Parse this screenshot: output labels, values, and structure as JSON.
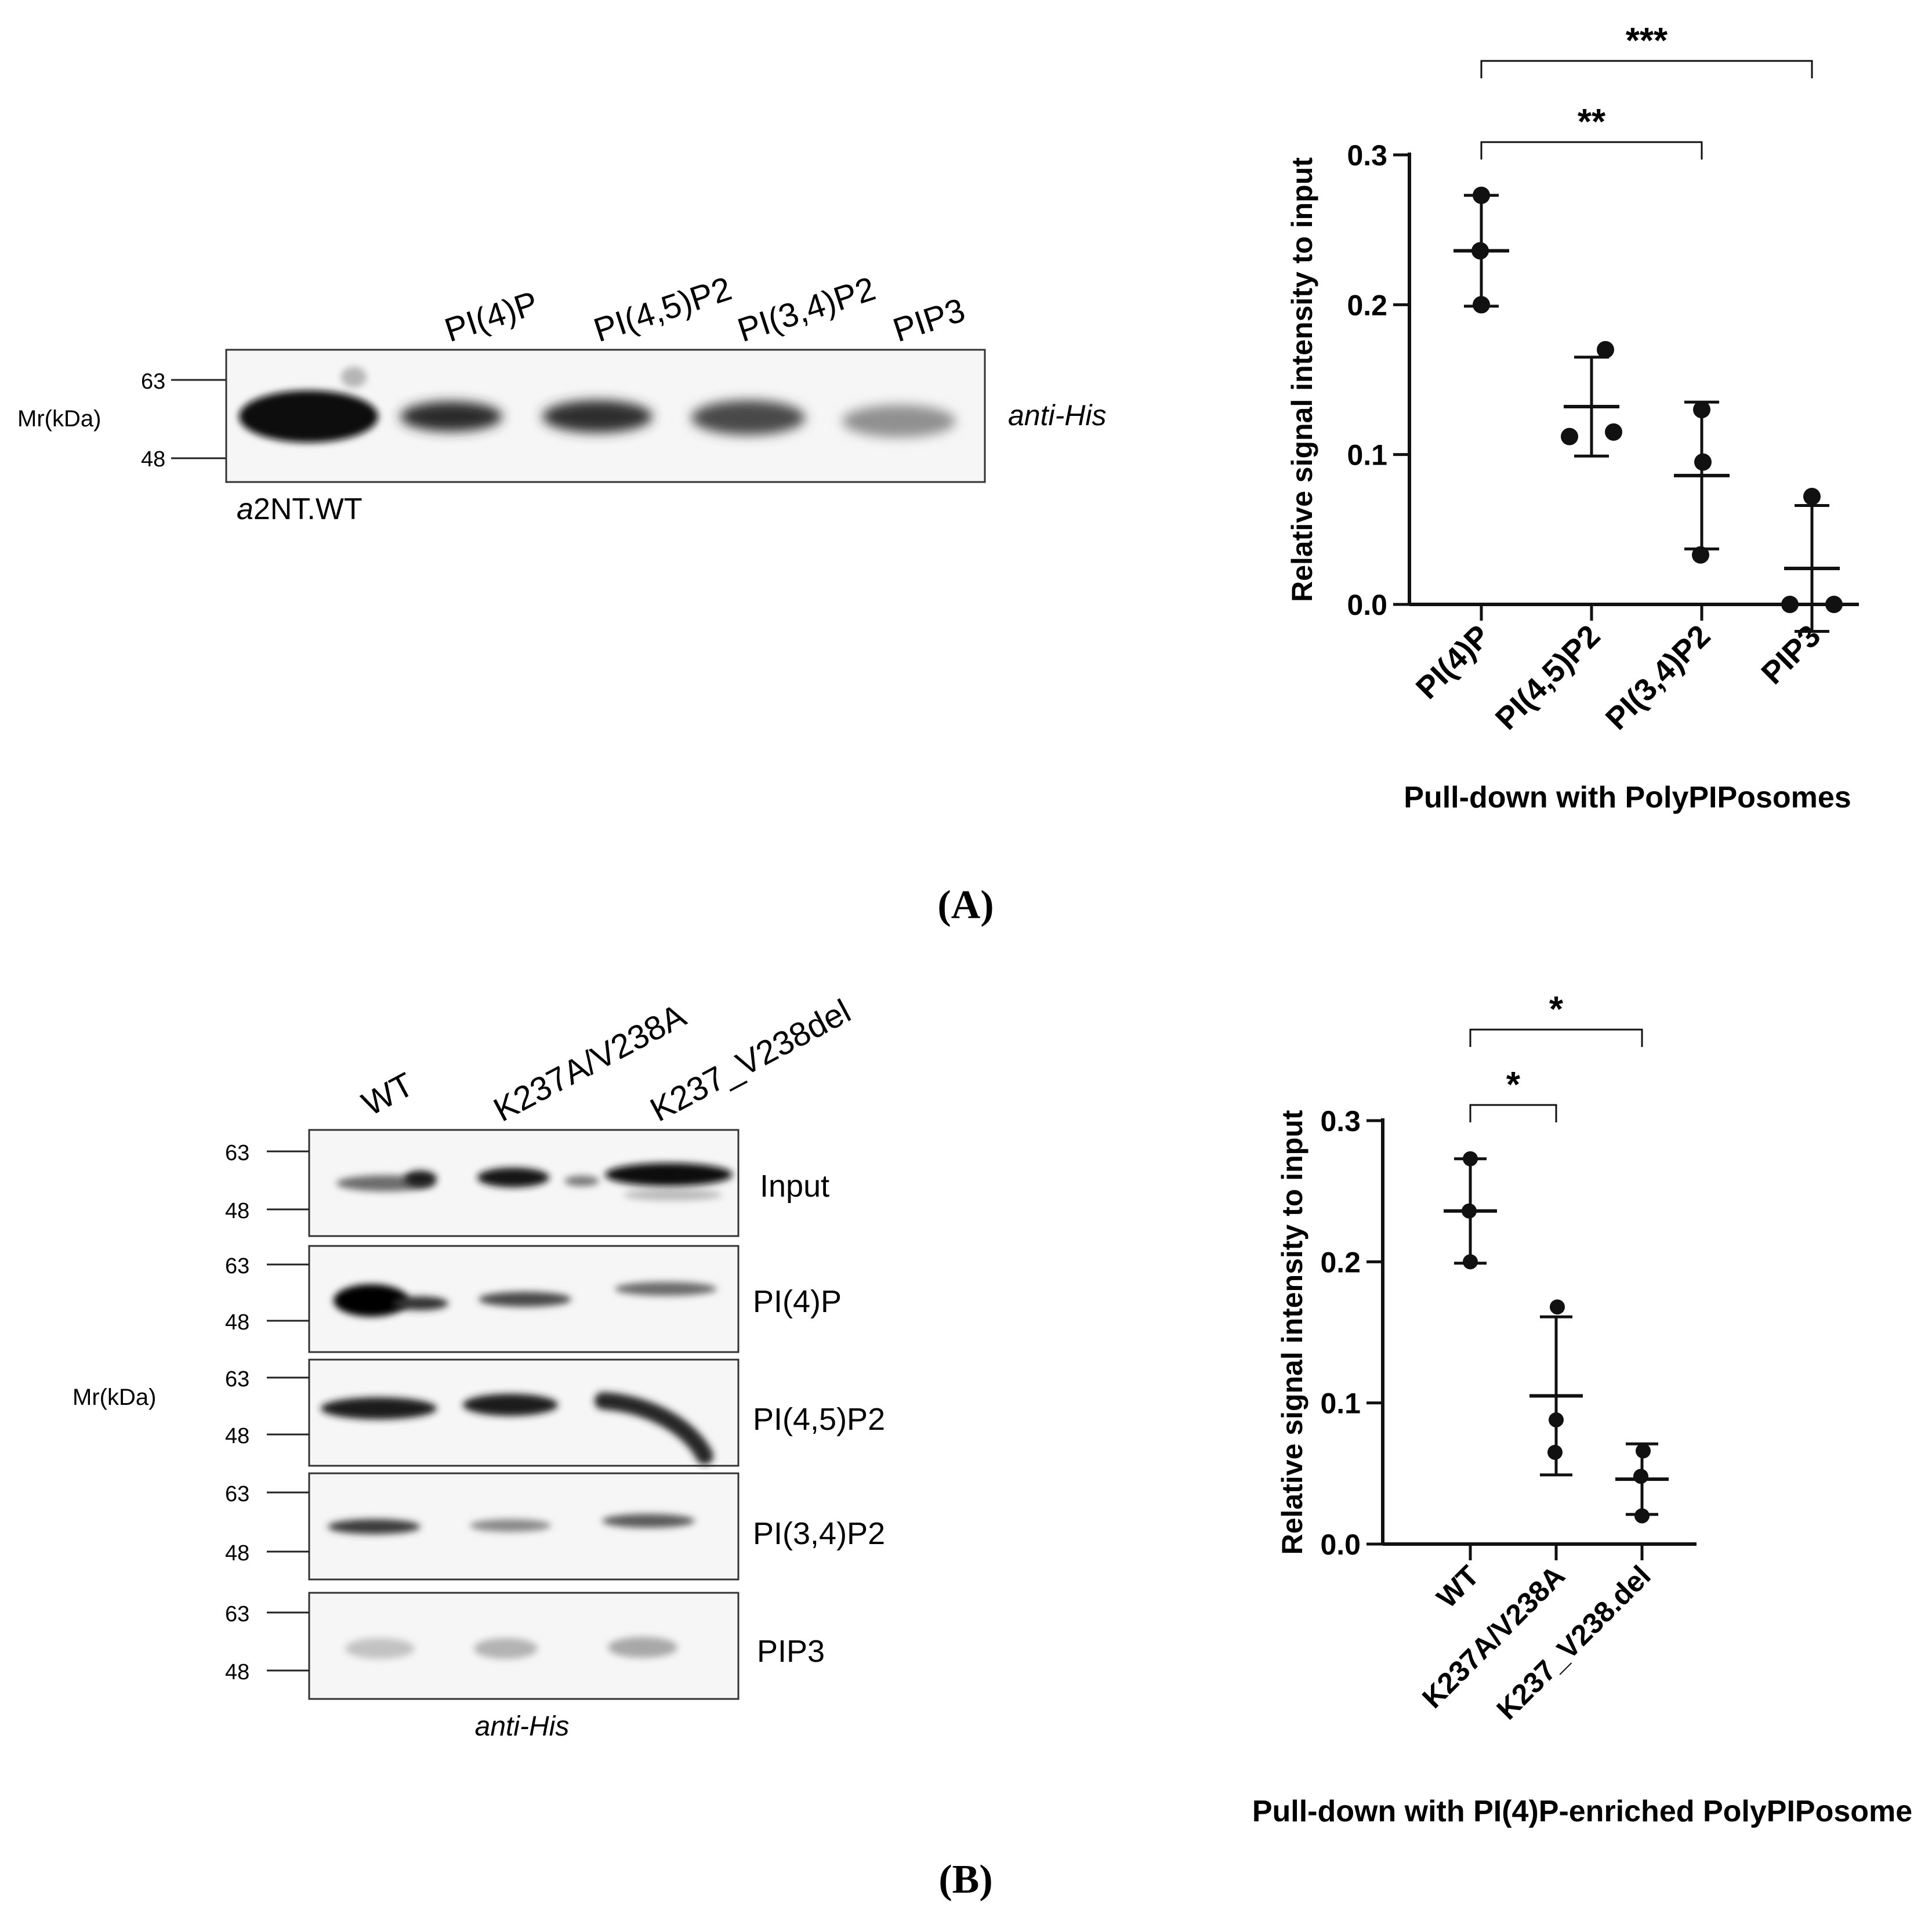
{
  "panel_a": {
    "letter_text": "(A)",
    "blot": {
      "lane_labels": [
        "PI(4)P",
        "PI(4,5)P2",
        "PI(3,4)P2",
        "PIP3"
      ],
      "mr_label": "Mr(kDa)",
      "marker_63": "63",
      "marker_48": "48",
      "antibody": "anti-His",
      "sample_label_italic": "a",
      "sample_label_rest": "2NT.WT"
    }
  },
  "panel_b": {
    "letter_text": "(B)",
    "blot": {
      "lane_labels": [
        "WT",
        "K237A/V238A",
        "K237_V238del"
      ],
      "mr_label": "Mr(kDa)",
      "marker_63": "63",
      "marker_48": "48",
      "strip_labels": [
        "Input",
        "PI(4)P",
        "PI(4,5)P2",
        "PI(3,4)P2",
        "PIP3"
      ],
      "antibody": "anti-His"
    }
  },
  "chart_data": [
    {
      "type": "scatter",
      "title": "",
      "xlabel": "Pull-down with PolyPIPosomes",
      "ylabel": "Relative signal intensity to input",
      "categories": [
        "PI(4)P",
        "PI(4,5)P2",
        "PI(3,4)P2",
        "PIP3"
      ],
      "ylim": [
        0.0,
        0.3
      ],
      "yticks": [
        "0.0",
        "0.1",
        "0.2",
        "0.3"
      ],
      "points": [
        [
          0.273,
          0.236,
          0.2
        ],
        [
          0.17,
          0.112,
          0.115
        ],
        [
          0.13,
          0.095,
          0.033
        ],
        [
          0.072,
          0.0,
          0.0
        ]
      ],
      "means": [
        0.236,
        0.132,
        0.086,
        0.024
      ],
      "errors": [
        0.037,
        0.033,
        0.049,
        0.042
      ],
      "significance": [
        {
          "from": 0,
          "to": 2,
          "label": "**"
        },
        {
          "from": 0,
          "to": 3,
          "label": "***"
        }
      ]
    },
    {
      "type": "scatter",
      "title": "",
      "xlabel": "Pull-down with PI(4)P-enriched PolyPIPosome",
      "ylabel": "Relative signal intensity to input",
      "categories": [
        "WT",
        "K237A/V238A",
        "K237_V238.del"
      ],
      "ylim": [
        0.0,
        0.3
      ],
      "yticks": [
        "0.0",
        "0.1",
        "0.2",
        "0.3"
      ],
      "points": [
        [
          0.273,
          0.236,
          0.2
        ],
        [
          0.168,
          0.088,
          0.065
        ],
        [
          0.066,
          0.048,
          0.02
        ]
      ],
      "means": [
        0.236,
        0.105,
        0.046
      ],
      "errors": [
        0.037,
        0.056,
        0.025
      ],
      "significance": [
        {
          "from": 0,
          "to": 1,
          "label": "*"
        },
        {
          "from": 0,
          "to": 2,
          "label": "*"
        }
      ]
    }
  ]
}
